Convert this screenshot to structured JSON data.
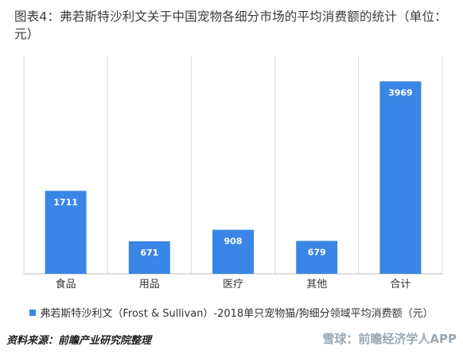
{
  "title": "图表4：弗若斯特沙利文关于中国宠物各细分市场的平均消费额的统计（单位：元）",
  "source": "资料来源：前瞻产业研究院整理",
  "watermark": "雪球：前瞻经济学人APP",
  "colors": {
    "bar": "#3a86e6",
    "grid": "#d9d9d9",
    "label": "#ffffff"
  },
  "chart_data": {
    "type": "bar",
    "categories": [
      "食品",
      "用品",
      "医疗",
      "其他",
      "合计"
    ],
    "series": [
      {
        "name": "弗若斯特沙利文（Frost & Sullivan）-2018单只宠物猫/狗细分领域平均消费额（元）",
        "values": [
          1711,
          671,
          908,
          679,
          3969
        ]
      }
    ],
    "ylim": [
      0,
      4500
    ],
    "legend": "bottom",
    "grid": "vertical-separators"
  }
}
